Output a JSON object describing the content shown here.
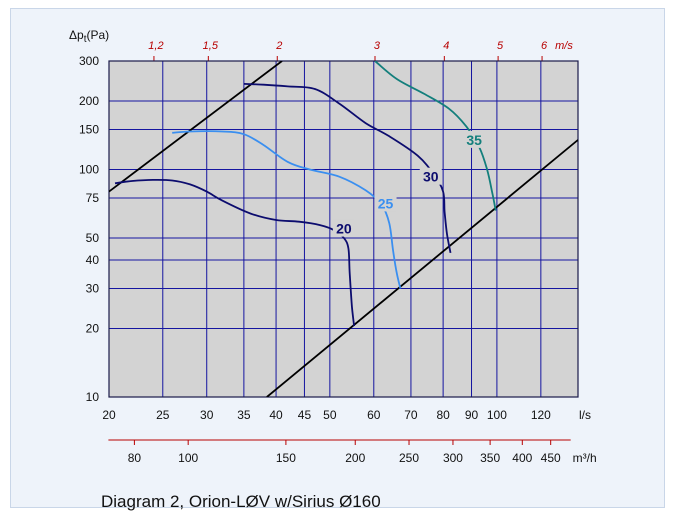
{
  "chart_data": {
    "type": "line",
    "title": "",
    "caption": "Diagram 2, Orion-LØV w/Sirius Ø160",
    "ylabel": "Δpt(Pa)",
    "ylabel_main": "Δp",
    "ylabel_sub": "t",
    "ylabel_unit": "(Pa)",
    "xlabel": "l/s",
    "x_scale": "log",
    "y_scale": "log",
    "xlim": [
      20,
      140
    ],
    "ylim": [
      10,
      300
    ],
    "grid": true,
    "x_ticks": [
      "20",
      "25",
      "30",
      "35",
      "40",
      "45",
      "50",
      "60",
      "70",
      "80",
      "90",
      "100",
      "120"
    ],
    "y_ticks": [
      "10",
      "20",
      "30",
      "40",
      "50",
      "75",
      "100",
      "150",
      "200",
      "300"
    ],
    "velocity_axis": {
      "unit": "m/s",
      "ticks": [
        "1,2",
        "1,5",
        "2",
        "3",
        "4",
        "5",
        "6"
      ],
      "at_flow": [
        24.1,
        30.2,
        40.2,
        60.3,
        80.4,
        100.5,
        120.6
      ]
    },
    "m3h_axis": {
      "unit": "m³/h",
      "ticks": [
        "80",
        "100",
        "150",
        "200",
        "250",
        "300",
        "350",
        "400",
        "450"
      ]
    },
    "colors": {
      "plot_bg": "#d3d3d3",
      "grid": "#1515a0",
      "velocity_text": "#b80000",
      "bound": "#000000",
      "s20": "#0c0c6e",
      "s25": "#3a8ff0",
      "s30": "#0c0c6e",
      "s35": "#137f7c"
    },
    "bounds": [
      {
        "name": "upper-limit",
        "x": [
          20,
          41
        ],
        "y": [
          80,
          300
        ]
      },
      {
        "name": "lower-limit",
        "x": [
          38.5,
          140
        ],
        "y": [
          10,
          135
        ]
      }
    ],
    "series": [
      {
        "name": "20",
        "label_at": [
          53,
          55
        ],
        "x": [
          20.5,
          22,
          24,
          26,
          28,
          30,
          32,
          36,
          40,
          44,
          48,
          51,
          53,
          54,
          54.3,
          54.8,
          55.3
        ],
        "y": [
          87,
          89,
          90,
          89.5,
          86,
          80,
          73,
          64,
          60,
          59,
          57,
          54,
          50,
          45,
          35,
          25,
          20.5
        ]
      },
      {
        "name": "25",
        "label_at": [
          63,
          71
        ],
        "x": [
          26,
          28,
          32,
          35,
          38,
          42,
          46,
          52,
          58,
          62,
          64,
          65,
          66,
          67
        ],
        "y": [
          145,
          147,
          147,
          143,
          128,
          108,
          100,
          93,
          81,
          70,
          58,
          44,
          35,
          30
        ]
      },
      {
        "name": "30",
        "label_at": [
          76,
          93
        ],
        "x": [
          35,
          38,
          42,
          47,
          52,
          58,
          64,
          72,
          77,
          80,
          80.5,
          81.3,
          82.5
        ],
        "y": [
          238,
          236,
          232,
          226,
          195,
          160,
          140,
          115,
          95,
          80,
          65,
          52,
          43
        ]
      },
      {
        "name": "35",
        "label_at": [
          91,
          135
        ],
        "x": [
          60.3,
          66,
          74,
          82,
          88,
          93,
          96,
          98,
          99.5
        ],
        "y": [
          300,
          250,
          215,
          185,
          155,
          125,
          100,
          80,
          66
        ]
      }
    ]
  }
}
